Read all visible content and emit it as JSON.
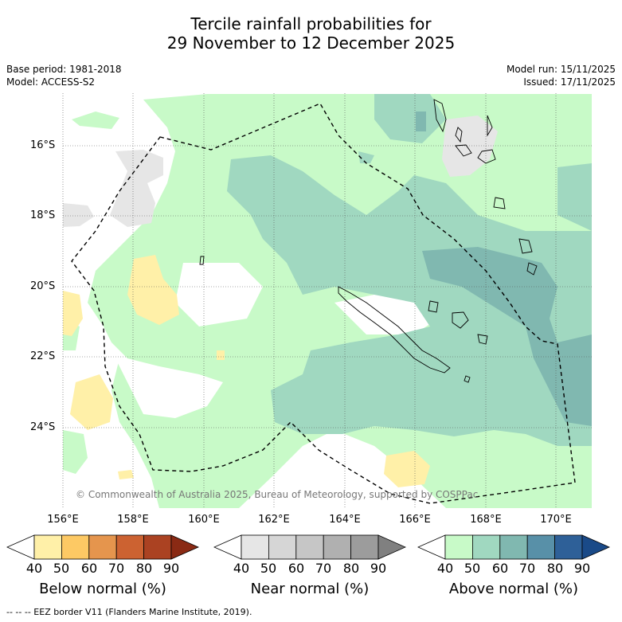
{
  "title_line1": "Tercile rainfall probabilities for",
  "title_line2": "29 November to 12 December 2025",
  "base_period": "Base period: 1981-2018",
  "model": "Model: ACCESS-S2",
  "model_run": "Model run: 15/11/2025",
  "issued": "Issued: 17/11/2025",
  "lat_labels": [
    "16°S",
    "18°S",
    "20°S",
    "22°S",
    "24°S"
  ],
  "lon_labels": [
    "156°E",
    "158°E",
    "160°E",
    "162°E",
    "164°E",
    "166°E",
    "168°E",
    "170°E"
  ],
  "copyright": "© Commonwealth of Australia 2025, Bureau of Meteorology, supported by COSPPac",
  "colorbars": [
    {
      "label": "Below normal (%)",
      "ticks": [
        "40",
        "50",
        "60",
        "70",
        "80",
        "90"
      ],
      "colors": [
        "#ffffff",
        "#fff0a8",
        "#fdc964",
        "#e5954d",
        "#cc6231",
        "#ab4222",
        "#8a2a14"
      ]
    },
    {
      "label": "Near normal (%)",
      "ticks": [
        "40",
        "50",
        "60",
        "70",
        "80",
        "90"
      ],
      "colors": [
        "#ffffff",
        "#e6e6e6",
        "#d6d6d6",
        "#c6c6c6",
        "#b0b0b0",
        "#9c9c9c",
        "#808080"
      ]
    },
    {
      "label": "Above normal (%)",
      "ticks": [
        "40",
        "50",
        "60",
        "70",
        "80",
        "90"
      ],
      "colors": [
        "#ffffff",
        "#c8fac8",
        "#a0d8c0",
        "#80b8b0",
        "#5890a8",
        "#2e6098",
        "#1a4a88"
      ]
    }
  ],
  "legend_footer": "-- -- -- EEZ border V11 (Flanders Marine Institute, 2019)."
}
